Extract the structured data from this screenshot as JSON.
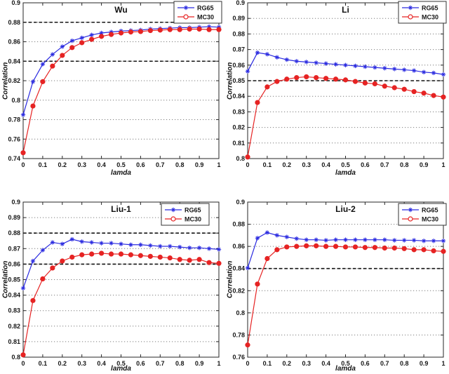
{
  "chart_data": [
    {
      "type": "line",
      "title": "Wu",
      "xlabel": "lamda",
      "ylabel": "Correlation",
      "xlim": [
        0,
        1
      ],
      "ylim": [
        0.74,
        0.9
      ],
      "xtick_values": [
        0,
        0.1,
        0.2,
        0.3,
        0.4,
        0.5,
        0.6,
        0.7,
        0.8,
        0.9,
        1
      ],
      "xtick_labels": [
        "0",
        "0.1",
        "0.2",
        "0.3",
        "0.4",
        "0.5",
        "0.6",
        "0.7",
        "0.8",
        "0.9",
        "1"
      ],
      "ytick_values": [
        0.74,
        0.76,
        0.78,
        0.8,
        0.82,
        0.84,
        0.86,
        0.88,
        0.9
      ],
      "ytick_labels": [
        "0.74",
        "0.76",
        "0.78",
        "0.8",
        "0.82",
        "0.84",
        "0.86",
        "0.88",
        "0.9"
      ],
      "grid": "horizontal-dotted",
      "ref_lines": [
        0.84,
        0.88
      ],
      "legend_position": "top-right-inside",
      "x": [
        0,
        0.05,
        0.1,
        0.15,
        0.2,
        0.25,
        0.3,
        0.35,
        0.4,
        0.45,
        0.5,
        0.55,
        0.6,
        0.65,
        0.7,
        0.75,
        0.8,
        0.85,
        0.9,
        0.95,
        1
      ],
      "series": [
        {
          "name": "RG65",
          "color": "#2a2ae0",
          "marker": "asterisk",
          "values": [
            0.785,
            0.819,
            0.837,
            0.847,
            0.855,
            0.861,
            0.864,
            0.867,
            0.869,
            0.87,
            0.871,
            0.8715,
            0.872,
            0.873,
            0.8735,
            0.874,
            0.8745,
            0.8745,
            0.875,
            0.8755,
            0.875
          ]
        },
        {
          "name": "MC30",
          "color": "#e62323",
          "marker": "circle",
          "values": [
            0.746,
            0.794,
            0.819,
            0.835,
            0.846,
            0.854,
            0.859,
            0.8625,
            0.8655,
            0.8675,
            0.869,
            0.87,
            0.8705,
            0.8715,
            0.872,
            0.8725,
            0.8725,
            0.873,
            0.873,
            0.8725,
            0.8725
          ]
        }
      ]
    },
    {
      "type": "line",
      "title": "Li",
      "xlabel": "lamda",
      "ylabel": "Correlation",
      "xlim": [
        0,
        1
      ],
      "ylim": [
        0.8,
        0.9
      ],
      "xtick_values": [
        0,
        0.1,
        0.2,
        0.3,
        0.4,
        0.5,
        0.6,
        0.7,
        0.8,
        0.9,
        1
      ],
      "xtick_labels": [
        "0",
        "0.1",
        "0.2",
        "0.3",
        "0.4",
        "0.5",
        "0.6",
        "0.7",
        "0.8",
        "0.9",
        "1"
      ],
      "ytick_values": [
        0.8,
        0.81,
        0.82,
        0.83,
        0.84,
        0.85,
        0.86,
        0.87,
        0.88,
        0.89,
        0.9
      ],
      "ytick_labels": [
        "0.8",
        "0.81",
        "0.82",
        "0.83",
        "0.84",
        "0.85",
        "0.86",
        "0.87",
        "0.88",
        "0.89",
        "0.9"
      ],
      "grid": "horizontal-dotted",
      "ref_lines": [
        0.85
      ],
      "legend_position": "top-right-inside",
      "x": [
        0,
        0.05,
        0.1,
        0.15,
        0.2,
        0.25,
        0.3,
        0.35,
        0.4,
        0.45,
        0.5,
        0.55,
        0.6,
        0.65,
        0.7,
        0.75,
        0.8,
        0.85,
        0.9,
        0.95,
        1
      ],
      "series": [
        {
          "name": "RG65",
          "color": "#2a2ae0",
          "marker": "asterisk",
          "values": [
            0.856,
            0.868,
            0.867,
            0.865,
            0.8635,
            0.8625,
            0.862,
            0.8615,
            0.861,
            0.8605,
            0.86,
            0.8595,
            0.859,
            0.8585,
            0.858,
            0.8575,
            0.857,
            0.8565,
            0.8555,
            0.855,
            0.854
          ]
        },
        {
          "name": "MC30",
          "color": "#e62323",
          "marker": "circle",
          "values": [
            0.801,
            0.836,
            0.846,
            0.8495,
            0.851,
            0.852,
            0.8525,
            0.852,
            0.8515,
            0.851,
            0.8505,
            0.8495,
            0.8485,
            0.848,
            0.8465,
            0.8455,
            0.8445,
            0.843,
            0.842,
            0.8405,
            0.8395
          ]
        }
      ]
    },
    {
      "type": "line",
      "title": "Liu-1",
      "xlabel": "lamda",
      "ylabel": "Correlation",
      "xlim": [
        0,
        1
      ],
      "ylim": [
        0.8,
        0.9
      ],
      "xtick_values": [
        0,
        0.1,
        0.2,
        0.3,
        0.4,
        0.5,
        0.6,
        0.7,
        0.8,
        0.9,
        1
      ],
      "xtick_labels": [
        "0",
        "0.1",
        "0.2",
        "0.3",
        "0.4",
        "0.5",
        "0.6",
        "0.7",
        "0.8",
        "0.9",
        "1"
      ],
      "ytick_values": [
        0.8,
        0.81,
        0.82,
        0.83,
        0.84,
        0.85,
        0.86,
        0.87,
        0.88,
        0.89,
        0.9
      ],
      "ytick_labels": [
        "0.8",
        "0.81",
        "0.82",
        "0.83",
        "0.84",
        "0.85",
        "0.86",
        "0.87",
        "0.88",
        "0.89",
        "0.9"
      ],
      "grid": "horizontal-dotted",
      "ref_lines": [
        0.86,
        0.88
      ],
      "legend_position": "top-right-inside",
      "x": [
        0,
        0.05,
        0.1,
        0.15,
        0.2,
        0.25,
        0.3,
        0.35,
        0.4,
        0.45,
        0.5,
        0.55,
        0.6,
        0.65,
        0.7,
        0.75,
        0.8,
        0.85,
        0.9,
        0.95,
        1
      ],
      "series": [
        {
          "name": "RG65",
          "color": "#2a2ae0",
          "marker": "asterisk",
          "values": [
            0.8445,
            0.862,
            0.869,
            0.874,
            0.873,
            0.876,
            0.8745,
            0.874,
            0.8735,
            0.8735,
            0.873,
            0.8725,
            0.8725,
            0.872,
            0.8715,
            0.8715,
            0.871,
            0.8705,
            0.8705,
            0.87,
            0.8695
          ]
        },
        {
          "name": "MC30",
          "color": "#e62323",
          "marker": "circle",
          "values": [
            0.8015,
            0.8365,
            0.8505,
            0.8575,
            0.862,
            0.8645,
            0.866,
            0.8665,
            0.867,
            0.8665,
            0.8665,
            0.866,
            0.8655,
            0.865,
            0.8645,
            0.864,
            0.863,
            0.8625,
            0.863,
            0.861,
            0.8605
          ]
        }
      ]
    },
    {
      "type": "line",
      "title": "Liu-2",
      "xlabel": "lamda",
      "ylabel": "Correlation",
      "xlim": [
        0,
        1
      ],
      "ylim": [
        0.76,
        0.9
      ],
      "xtick_values": [
        0,
        0.1,
        0.2,
        0.3,
        0.4,
        0.5,
        0.6,
        0.7,
        0.8,
        0.9,
        1
      ],
      "xtick_labels": [
        "0",
        "0.1",
        "0.2",
        "0.3",
        "0.4",
        "0.5",
        "0.6",
        "0.7",
        "0.8",
        "0.9",
        "1"
      ],
      "ytick_values": [
        0.76,
        0.78,
        0.8,
        0.82,
        0.84,
        0.86,
        0.88,
        0.9
      ],
      "ytick_labels": [
        "0.76",
        "0.78",
        "0.8",
        "0.82",
        "0.84",
        "0.86",
        "0.88",
        "0.9"
      ],
      "grid": "horizontal-dotted",
      "ref_lines": [
        0.84
      ],
      "legend_position": "top-right-inside",
      "x": [
        0,
        0.05,
        0.1,
        0.15,
        0.2,
        0.25,
        0.3,
        0.35,
        0.4,
        0.45,
        0.5,
        0.55,
        0.6,
        0.65,
        0.7,
        0.75,
        0.8,
        0.85,
        0.9,
        0.95,
        1
      ],
      "series": [
        {
          "name": "RG65",
          "color": "#2a2ae0",
          "marker": "asterisk",
          "values": [
            0.8405,
            0.8675,
            0.8725,
            0.87,
            0.8685,
            0.867,
            0.866,
            0.866,
            0.8655,
            0.866,
            0.866,
            0.866,
            0.866,
            0.866,
            0.866,
            0.8655,
            0.8655,
            0.8655,
            0.865,
            0.865,
            0.865
          ]
        },
        {
          "name": "MC30",
          "color": "#e62323",
          "marker": "circle",
          "values": [
            0.771,
            0.826,
            0.849,
            0.857,
            0.8595,
            0.86,
            0.8605,
            0.8605,
            0.86,
            0.86,
            0.8595,
            0.8595,
            0.859,
            0.859,
            0.8585,
            0.8585,
            0.858,
            0.857,
            0.857,
            0.856,
            0.8555
          ]
        }
      ]
    }
  ]
}
